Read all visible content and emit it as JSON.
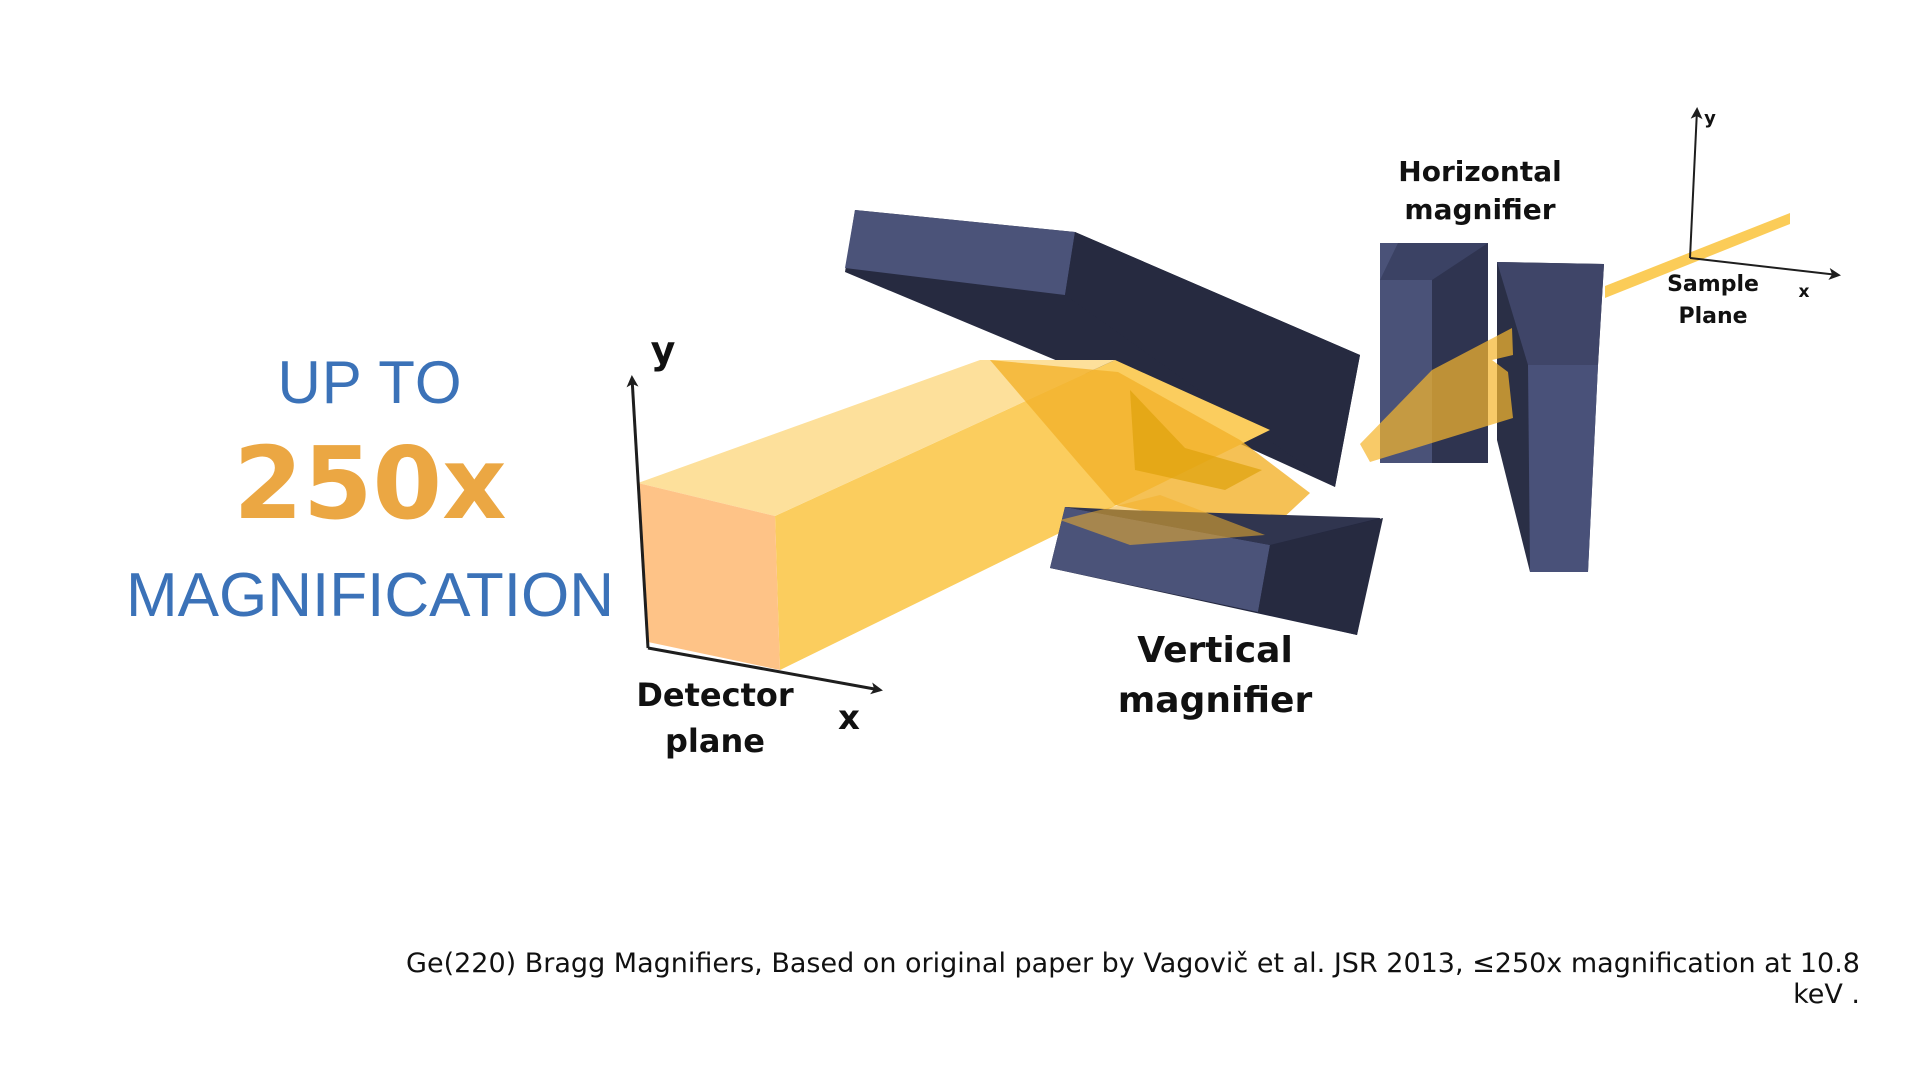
{
  "headline": {
    "line1": "UP TO",
    "line2": "250x",
    "line3": "MAGNIFICATION"
  },
  "diagram": {
    "detector_axis_y": "y",
    "detector_axis_x": "x",
    "detector_label_line1": "Detector",
    "detector_label_line2": "plane",
    "vertical_label_line1": "Vertical",
    "vertical_label_line2": "magnifier",
    "horizontal_label_line1": "Horizontal",
    "horizontal_label_line2": "magnifier",
    "sample_axis_y": "y",
    "sample_axis_x": "x",
    "sample_label_line1": "Sample",
    "sample_label_line2": "Plane"
  },
  "caption": "Ge(220) Bragg Magnifiers, Based on original paper by Vagovič et al. JSR 2013, ≤250x magnification at 10.8 keV .",
  "colors": {
    "accent_blue": "#3b72b8",
    "accent_orange": "#eba743",
    "beam": "#fbcc58",
    "crystal": "#3f4568"
  }
}
